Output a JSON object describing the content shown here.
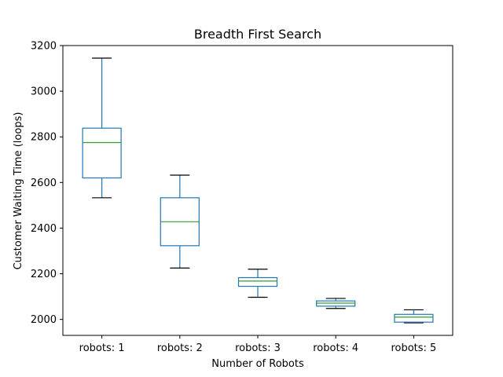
{
  "chart_data": {
    "type": "box",
    "title": "Breadth First Search",
    "xlabel": "Number of Robots",
    "ylabel": "Customer Waiting Time (loops)",
    "ylim": [
      1930,
      3200
    ],
    "yticks": [
      2000,
      2200,
      2400,
      2600,
      2800,
      3000,
      3200
    ],
    "categories": [
      "robots: 1",
      "robots: 2",
      "robots: 3",
      "robots: 4",
      "robots: 5"
    ],
    "boxes": [
      {
        "whisker_low": 2533,
        "q1": 2620,
        "median": 2775,
        "q3": 2838,
        "whisker_high": 3145
      },
      {
        "whisker_low": 2225,
        "q1": 2323,
        "median": 2428,
        "q3": 2533,
        "whisker_high": 2632
      },
      {
        "whisker_low": 2097,
        "q1": 2145,
        "median": 2168,
        "q3": 2183,
        "whisker_high": 2220
      },
      {
        "whisker_low": 2048,
        "q1": 2058,
        "median": 2071,
        "q3": 2081,
        "whisker_high": 2092
      },
      {
        "whisker_low": 1985,
        "q1": 1988,
        "median": 2010,
        "q3": 2022,
        "whisker_high": 2042
      }
    ],
    "colors": {
      "box": "#1f77b4",
      "median": "#2ca02c",
      "whisker": "#000000",
      "axis": "#000000"
    },
    "grid": false
  }
}
